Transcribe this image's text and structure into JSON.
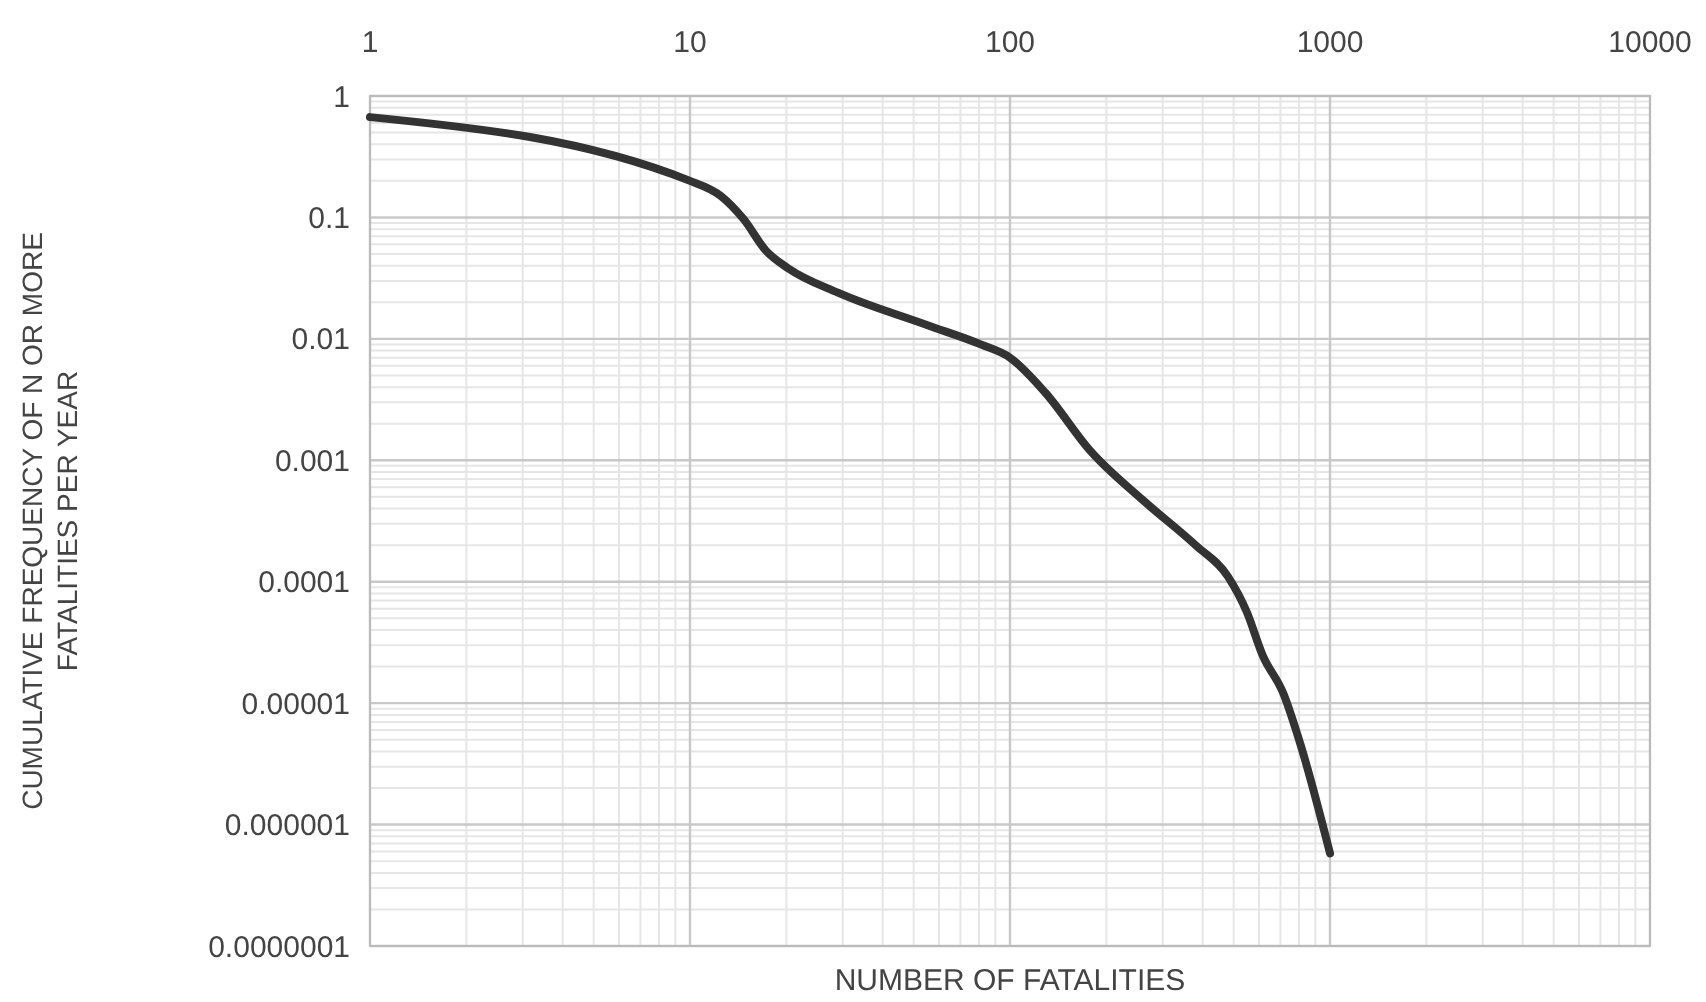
{
  "chart_data": {
    "type": "line",
    "xlabel": "NUMBER OF FATALITIES",
    "ylabel": "CUMULATIVE FREQUENCY OF N OR MORE\nFATALITIES PER YEAR",
    "log": "xy",
    "grid": true,
    "marker": "none",
    "line_style": "solid",
    "xlim": [
      1,
      10000
    ],
    "xticks": [
      1,
      10,
      100,
      1000,
      10000
    ],
    "ylim": [
      1e-07,
      1
    ],
    "yticks": [
      1,
      0.1,
      0.01,
      0.001,
      0.0001,
      {
        "value": 1e-05,
        "label": "0.00001"
      },
      {
        "value": 1e-06,
        "label": "0.000001"
      },
      {
        "value": 1e-07,
        "label": "0.0000001"
      }
    ],
    "series": [
      {
        "color": "#333333",
        "x": [
          1,
          10,
          12.5,
          14.7,
          17.3,
          20.3,
          29,
          55,
          81,
          100,
          129,
          178,
          260,
          380,
          480,
          550,
          615,
          715,
          810,
          1000
        ],
        "values": [
          0.67,
          0.2,
          0.15,
          0.097,
          0.053,
          0.038,
          0.024,
          0.013,
          0.009,
          0.007,
          0.0036,
          0.0012,
          0.00047,
          0.0002,
          0.00011,
          5.6e-05,
          2.5e-05,
          1.2e-05,
          4.5e-06,
          5.8e-07
        ]
      }
    ]
  }
}
